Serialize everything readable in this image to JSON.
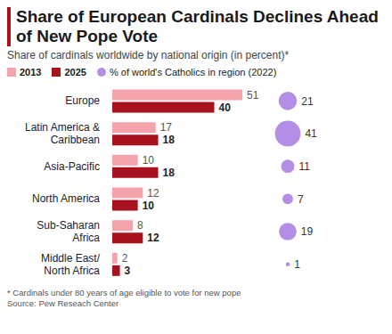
{
  "chart_data": {
    "type": "bar",
    "orientation": "horizontal",
    "title": "Share of European Cardinals Declines Ahead of New Pope Vote",
    "subtitle": "Share of cardinals worldwide by national origin (in percent)*",
    "categories": [
      "Europe",
      "Latin America & Caribbean",
      "Asia-Pacific",
      "North America",
      "Sub-Saharan Africa",
      "Middle East/ North Africa"
    ],
    "series": [
      {
        "name": "2013",
        "color": "#f4a3ad",
        "values": [
          51,
          17,
          10,
          12,
          8,
          2
        ]
      },
      {
        "name": "2025",
        "color": "#a8121f",
        "values": [
          40,
          18,
          18,
          10,
          12,
          3
        ]
      },
      {
        "name": "% of world's Catholics in region (2022)",
        "type": "scatter",
        "marker": "circle",
        "color": "#b48ee6",
        "values": [
          21,
          41,
          11,
          7,
          19,
          1
        ]
      }
    ],
    "data_labels": true,
    "tick_labels": "y",
    "annotations": [
      "* Cardinals under 80 years of age eligible to vote for new pope",
      "Source: Pew Reseach Center"
    ]
  }
}
